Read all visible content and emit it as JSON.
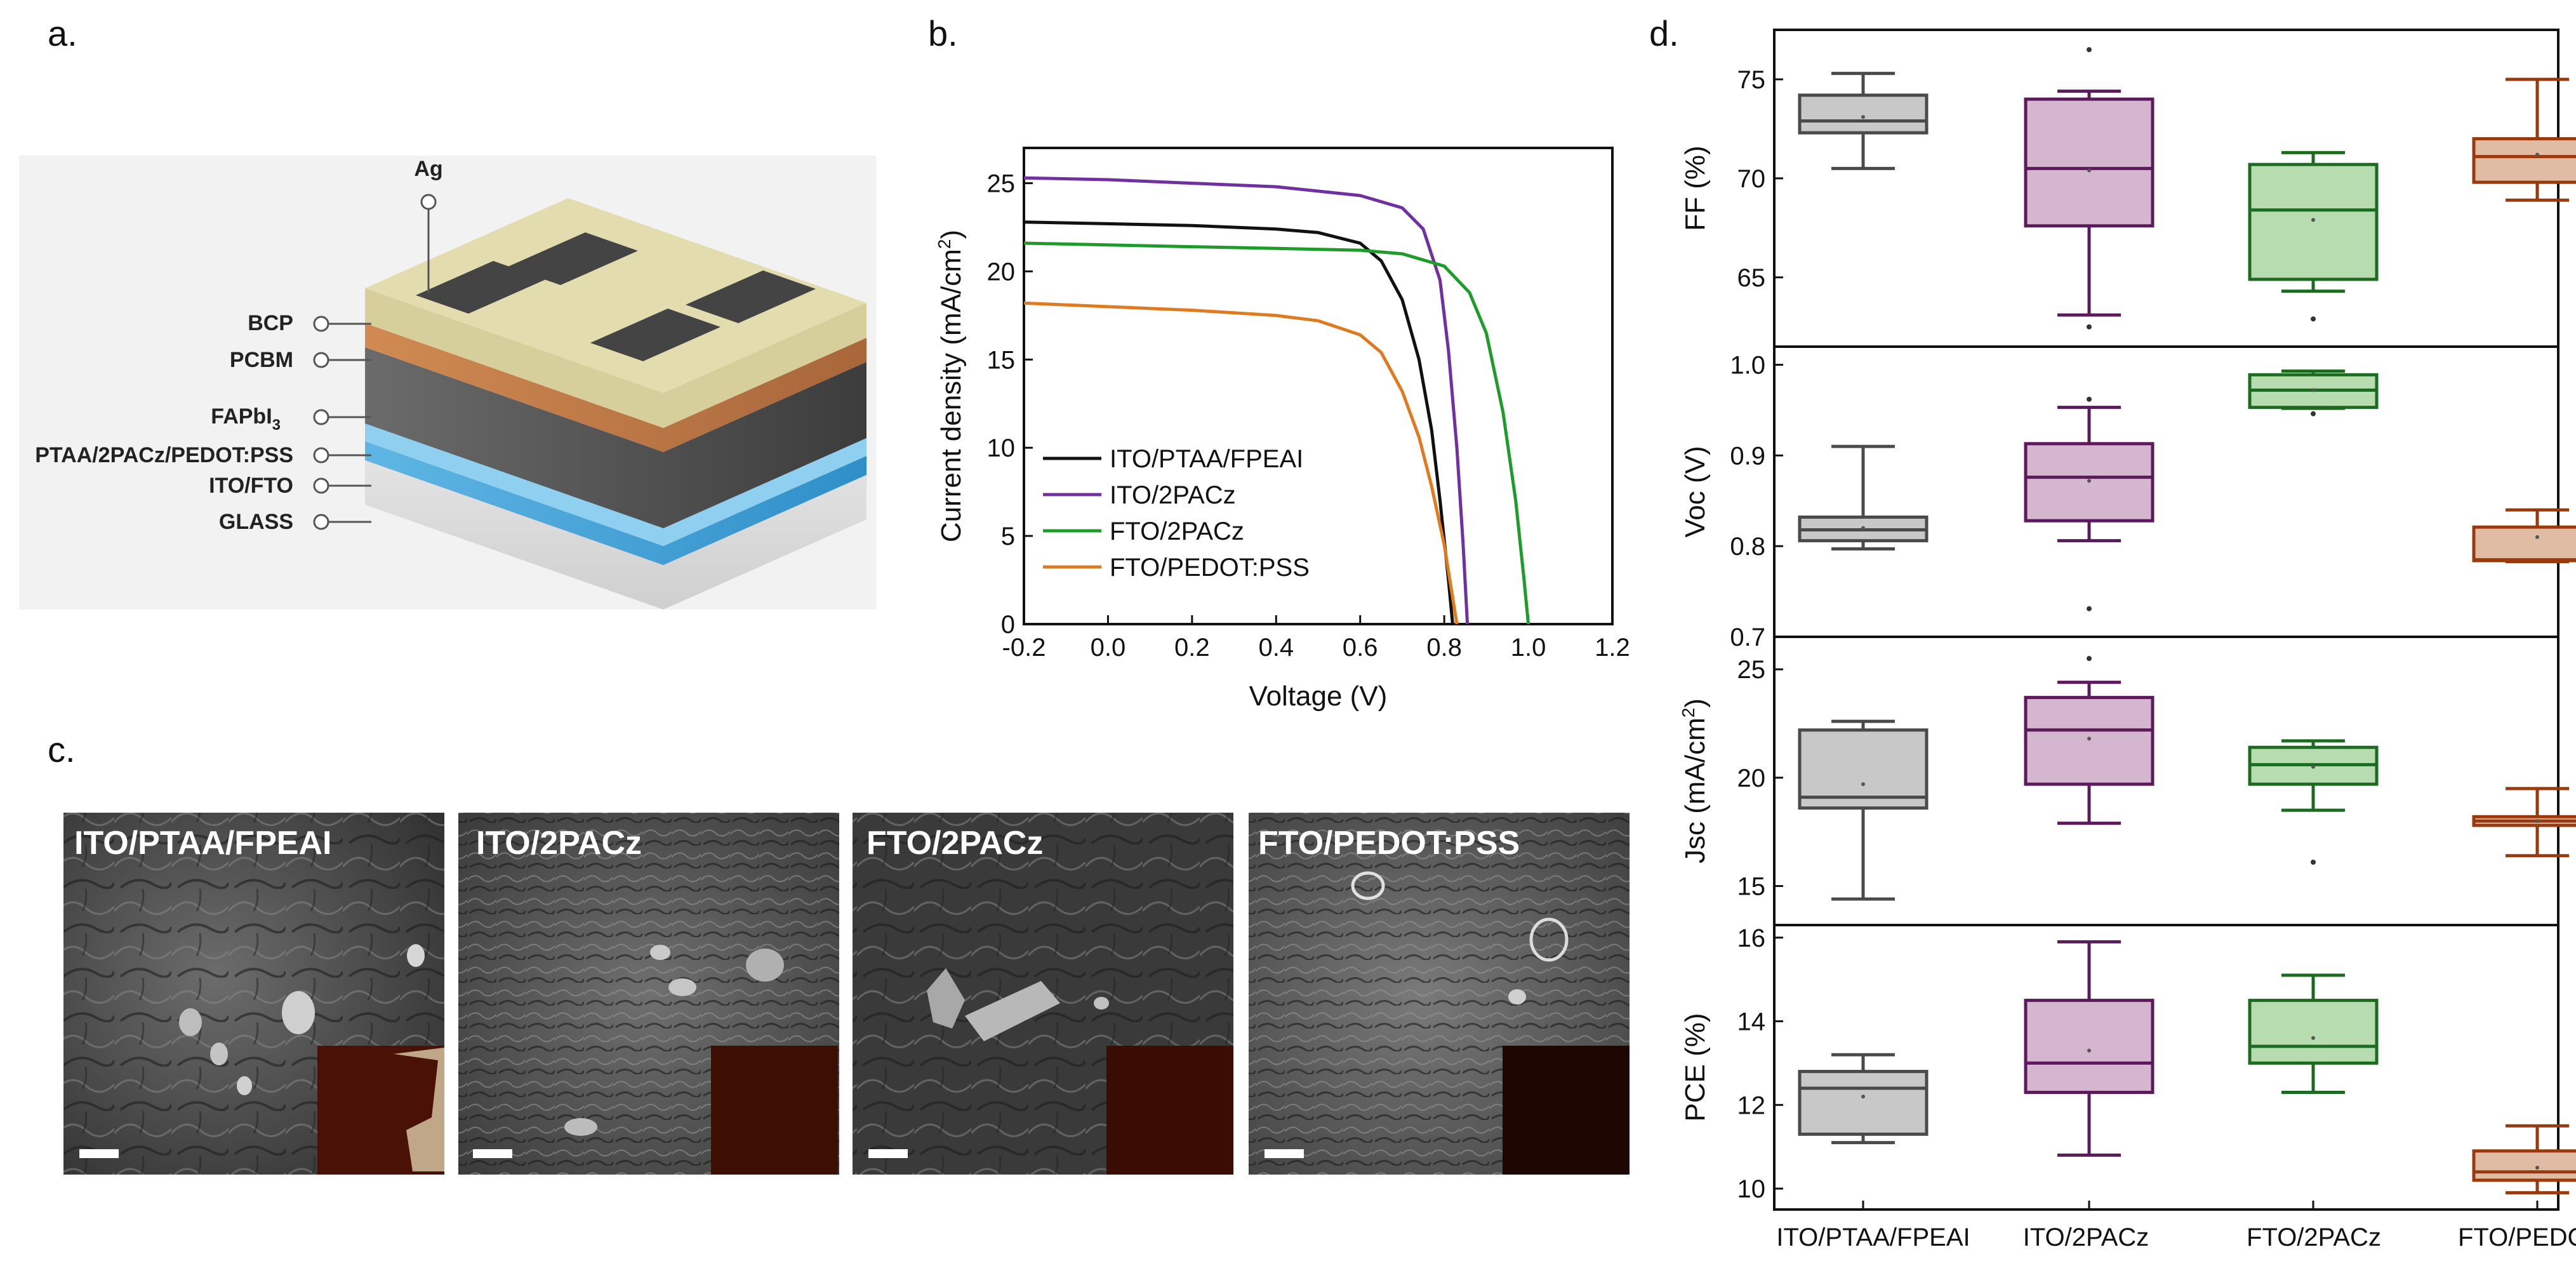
{
  "panels": {
    "a": "a.",
    "b": "b.",
    "c": "c.",
    "d": "d."
  },
  "schematic": {
    "top_label": "Ag",
    "layers": [
      "BCP",
      "PCBM",
      "FAPbI",
      "PTAA/2PACz/PEDOT:PSS",
      "ITO/FTO",
      "GLASS"
    ],
    "fapbi_subscript": "3"
  },
  "sem": {
    "labels": [
      "ITO/PTAA/FPEAI",
      "ITO/2PACz",
      "FTO/2PACz",
      "FTO/PEDOT:PSS"
    ]
  },
  "colors": {
    "black": "#111111",
    "purple": "#7030a0",
    "green": "#1e9c2a",
    "orange": "#e07a1e",
    "box_gray_fill": "#c8c8c8",
    "box_gray_stroke": "#4a4a4a",
    "box_purple_fill": "#d4b6cf",
    "box_purple_stroke": "#5c1a5c",
    "box_green_fill": "#b6dcb0",
    "box_green_stroke": "#1d6b20",
    "box_orange_fill": "#e0bca4",
    "box_orange_stroke": "#9a3a0c"
  },
  "chart_data": [
    {
      "type": "line",
      "title": "",
      "xlabel": "Voltage (V)",
      "ylabel": "Current density (mA/cm",
      "ylabel_sup": "2",
      "ylabel_end": ")",
      "xlim": [
        -0.2,
        1.2
      ],
      "ylim": [
        0,
        27
      ],
      "xticks": [
        -0.2,
        0.0,
        0.2,
        0.4,
        0.6,
        0.8,
        1.0,
        1.2
      ],
      "xtick_labels": [
        "-0.2",
        "0.0",
        "0.2",
        "0.4",
        "0.6",
        "0.8",
        "1.0",
        "1.2"
      ],
      "yticks": [
        0,
        5,
        10,
        15,
        20,
        25
      ],
      "ytick_labels": [
        "0",
        "5",
        "10",
        "15",
        "20",
        "25"
      ],
      "legend_position": "bottom-left",
      "series": [
        {
          "name": "ITO/PTAA/FPEAI",
          "color": "#111111",
          "x": [
            -0.2,
            0.0,
            0.2,
            0.4,
            0.5,
            0.6,
            0.65,
            0.7,
            0.74,
            0.77,
            0.79,
            0.81,
            0.82
          ],
          "y": [
            22.8,
            22.7,
            22.6,
            22.4,
            22.2,
            21.6,
            20.6,
            18.4,
            15.0,
            11.0,
            7.0,
            2.5,
            0
          ]
        },
        {
          "name": "ITO/2PACz",
          "color": "#7030a0",
          "x": [
            -0.2,
            0.0,
            0.2,
            0.4,
            0.6,
            0.7,
            0.75,
            0.79,
            0.81,
            0.83,
            0.845,
            0.855
          ],
          "y": [
            25.3,
            25.2,
            25.0,
            24.8,
            24.3,
            23.6,
            22.4,
            19.5,
            15.5,
            10.0,
            4.5,
            0
          ]
        },
        {
          "name": "FTO/2PACz",
          "color": "#1e9c2a",
          "x": [
            -0.2,
            0.0,
            0.2,
            0.4,
            0.6,
            0.7,
            0.8,
            0.86,
            0.9,
            0.94,
            0.97,
            0.99,
            1.0
          ],
          "y": [
            21.6,
            21.5,
            21.4,
            21.3,
            21.2,
            21.0,
            20.3,
            18.8,
            16.5,
            12.0,
            7.0,
            2.5,
            0
          ]
        },
        {
          "name": "FTO/PEDOT:PSS",
          "color": "#e07a1e",
          "x": [
            -0.2,
            0.0,
            0.2,
            0.4,
            0.5,
            0.6,
            0.65,
            0.7,
            0.74,
            0.77,
            0.8,
            0.82,
            0.83
          ],
          "y": [
            18.2,
            18.0,
            17.8,
            17.5,
            17.2,
            16.4,
            15.4,
            13.2,
            10.6,
            7.8,
            4.5,
            1.5,
            0
          ]
        }
      ]
    },
    {
      "type": "box",
      "categories": [
        "ITO/PTAA/FPEAI",
        "ITO/2PACz",
        "FTO/2PACz",
        "FTO/PEDOT:PSS"
      ],
      "subplots": [
        {
          "ylabel": "FF (%)",
          "ylim": [
            61.5,
            77.5
          ],
          "yticks": [
            65,
            70,
            75
          ],
          "ytick_labels": [
            "65",
            "70",
            "75"
          ],
          "boxes": [
            {
              "whisker_low": 70.5,
              "q1": 72.3,
              "median": 72.9,
              "q3": 74.2,
              "whisker_high": 75.3,
              "mean": 73.1,
              "outliers": []
            },
            {
              "whisker_low": 63.1,
              "q1": 67.6,
              "median": 70.5,
              "q3": 74.0,
              "whisker_high": 74.4,
              "mean": 70.4,
              "outliers": [
                76.5,
                62.5
              ]
            },
            {
              "whisker_low": 64.3,
              "q1": 64.9,
              "median": 68.4,
              "q3": 70.7,
              "whisker_high": 71.3,
              "mean": 67.9,
              "outliers": [
                62.9
              ]
            },
            {
              "whisker_low": 68.9,
              "q1": 69.8,
              "median": 71.1,
              "q3": 72.0,
              "whisker_high": 75.0,
              "mean": 71.2,
              "outliers": []
            }
          ]
        },
        {
          "ylabel": "Voc (V)",
          "ylim": [
            0.7,
            1.02
          ],
          "yticks": [
            0.7,
            0.8,
            0.9,
            1.0
          ],
          "ytick_labels": [
            "0.7",
            "0.8",
            "0.9",
            "1.0"
          ],
          "boxes": [
            {
              "whisker_low": 0.797,
              "q1": 0.806,
              "median": 0.818,
              "q3": 0.832,
              "whisker_high": 0.91,
              "mean": 0.82,
              "outliers": []
            },
            {
              "whisker_low": 0.806,
              "q1": 0.828,
              "median": 0.876,
              "q3": 0.913,
              "whisker_high": 0.953,
              "mean": 0.872,
              "outliers": [
                0.962,
                0.731
              ]
            },
            {
              "whisker_low": 0.952,
              "q1": 0.953,
              "median": 0.972,
              "q3": 0.989,
              "whisker_high": 0.993,
              "mean": 0.972,
              "outliers": [
                0.946
              ]
            },
            {
              "whisker_low": 0.783,
              "q1": 0.784,
              "median": 0.785,
              "q3": 0.821,
              "whisker_high": 0.84,
              "mean": 0.81,
              "outliers": []
            }
          ]
        },
        {
          "ylabel": "Jsc (mA/cm",
          "ylabel_sup": "2",
          "ylabel_end": ")",
          "ylim": [
            13.2,
            26.5
          ],
          "yticks": [
            15,
            20,
            25
          ],
          "ytick_labels": [
            "15",
            "20",
            "25"
          ],
          "boxes": [
            {
              "whisker_low": 14.4,
              "q1": 18.6,
              "median": 19.1,
              "q3": 22.2,
              "whisker_high": 22.6,
              "mean": 19.7,
              "outliers": []
            },
            {
              "whisker_low": 17.9,
              "q1": 19.7,
              "median": 22.2,
              "q3": 23.7,
              "whisker_high": 24.4,
              "mean": 21.8,
              "outliers": [
                25.5
              ]
            },
            {
              "whisker_low": 18.5,
              "q1": 19.7,
              "median": 20.6,
              "q3": 21.4,
              "whisker_high": 21.7,
              "mean": 20.5,
              "outliers": [
                16.1
              ]
            },
            {
              "whisker_low": 16.4,
              "q1": 17.8,
              "median": 18.0,
              "q3": 18.2,
              "whisker_high": 19.5,
              "mean": 18.0,
              "outliers": []
            }
          ]
        },
        {
          "ylabel": "PCE (%)",
          "ylim": [
            9.5,
            16.3
          ],
          "yticks": [
            10,
            12,
            14,
            16
          ],
          "ytick_labels": [
            "10",
            "12",
            "14",
            "16"
          ],
          "boxes": [
            {
              "whisker_low": 11.1,
              "q1": 11.3,
              "median": 12.4,
              "q3": 12.8,
              "whisker_high": 13.2,
              "mean": 12.2,
              "outliers": []
            },
            {
              "whisker_low": 10.8,
              "q1": 12.3,
              "median": 13.0,
              "q3": 14.5,
              "whisker_high": 15.9,
              "mean": 13.3,
              "outliers": []
            },
            {
              "whisker_low": 12.3,
              "q1": 13.0,
              "median": 13.4,
              "q3": 14.5,
              "whisker_high": 15.1,
              "mean": 13.6,
              "outliers": []
            },
            {
              "whisker_low": 9.9,
              "q1": 10.2,
              "median": 10.4,
              "q3": 10.9,
              "whisker_high": 11.5,
              "mean": 10.5,
              "outliers": []
            }
          ]
        }
      ]
    }
  ]
}
